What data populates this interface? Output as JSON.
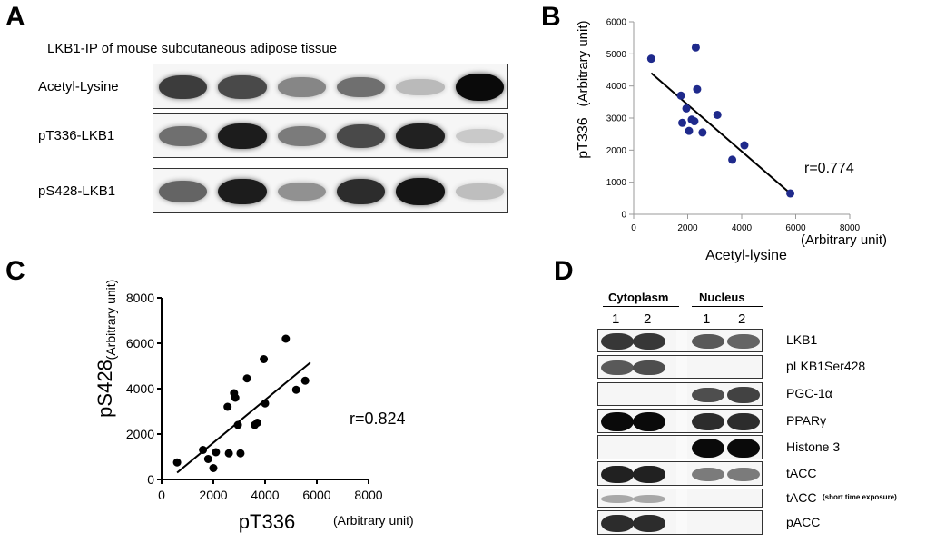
{
  "panel_a": {
    "letter": "A",
    "title": "LKB1-IP of mouse subcutaneous adipose tissue",
    "rows": [
      {
        "label": "Acetyl-Lysine",
        "intensities": [
          0.78,
          0.72,
          0.45,
          0.55,
          0.22,
          1.0
        ]
      },
      {
        "label": "pT336-LKB1",
        "intensities": [
          0.55,
          0.92,
          0.5,
          0.72,
          0.9,
          0.15
        ]
      },
      {
        "label": "pS428-LKB1",
        "intensities": [
          0.6,
          0.92,
          0.4,
          0.85,
          0.95,
          0.2
        ]
      }
    ]
  },
  "panel_b": {
    "letter": "B",
    "r_label": "r=0.774"
  },
  "panel_c": {
    "letter": "C",
    "r_label": "r=0.824"
  },
  "panel_d": {
    "letter": "D",
    "group_labels": [
      "Cytoplasm",
      "Nucleus"
    ],
    "lane_numbers": [
      "1",
      "2",
      "1",
      "2"
    ],
    "rows": [
      {
        "label": "LKB1",
        "sub": "",
        "intensities": [
          0.8,
          0.8,
          0.65,
          0.6
        ]
      },
      {
        "label": "pLKB1Ser428",
        "sub": "",
        "intensities": [
          0.65,
          0.7,
          0,
          0
        ]
      },
      {
        "label": "PGC-1α",
        "sub": "",
        "intensities": [
          0,
          0,
          0.7,
          0.75
        ]
      },
      {
        "label": "PPARγ",
        "sub": "",
        "intensities": [
          1.0,
          1.0,
          0.85,
          0.85
        ]
      },
      {
        "label": "Histone 3",
        "sub": "",
        "intensities": [
          0,
          0,
          1.0,
          1.0
        ]
      },
      {
        "label": "tACC",
        "sub": "",
        "intensities": [
          0.9,
          0.9,
          0.5,
          0.5
        ]
      },
      {
        "label": "tACC",
        "sub": "(short time exposure)",
        "intensities": [
          0.3,
          0.3,
          0,
          0
        ]
      },
      {
        "label": "pACC",
        "sub": "",
        "intensities": [
          0.85,
          0.85,
          0,
          0
        ]
      }
    ]
  },
  "chart_data": [
    {
      "type": "scatter",
      "title": "",
      "xlabel": "Acetyl-lysine",
      "xlabel_unit": "(Arbitrary unit)",
      "ylabel": "pT336",
      "ylabel_unit": "(Arbitrary unit)",
      "xlim": [
        0,
        8000
      ],
      "ylim": [
        0,
        6000
      ],
      "xticks": [
        "0",
        "2000",
        "4000",
        "6000",
        "8000"
      ],
      "yticks": [
        "0",
        "1000",
        "2000",
        "3000",
        "4000",
        "5000",
        "6000"
      ],
      "points": [
        {
          "x": 650,
          "y": 4850
        },
        {
          "x": 1750,
          "y": 3700
        },
        {
          "x": 1800,
          "y": 2850
        },
        {
          "x": 1950,
          "y": 3300
        },
        {
          "x": 2050,
          "y": 2600
        },
        {
          "x": 2150,
          "y": 2950
        },
        {
          "x": 2250,
          "y": 2900
        },
        {
          "x": 2300,
          "y": 5200
        },
        {
          "x": 2350,
          "y": 3900
        },
        {
          "x": 2550,
          "y": 2550
        },
        {
          "x": 3100,
          "y": 3100
        },
        {
          "x": 3650,
          "y": 1700
        },
        {
          "x": 4100,
          "y": 2150
        },
        {
          "x": 5800,
          "y": 650
        }
      ],
      "fit": {
        "x0": 650,
        "y0": 4400,
        "x1": 5800,
        "y1": 650
      },
      "r_label": "r=0.774",
      "marker_color": "#1f2a8c"
    },
    {
      "type": "scatter",
      "title": "",
      "xlabel": "pT336",
      "xlabel_unit": "(Arbitrary unit)",
      "ylabel": "pS428",
      "ylabel_unit": "(Arbitrary unit)",
      "xlim": [
        0,
        8000
      ],
      "ylim": [
        0,
        8000
      ],
      "xticks": [
        "0",
        "2000",
        "4000",
        "6000",
        "8000"
      ],
      "yticks": [
        "0",
        "2000",
        "4000",
        "6000",
        "8000"
      ],
      "points": [
        {
          "x": 600,
          "y": 750
        },
        {
          "x": 1600,
          "y": 1300
        },
        {
          "x": 1800,
          "y": 900
        },
        {
          "x": 2000,
          "y": 500
        },
        {
          "x": 2100,
          "y": 1200
        },
        {
          "x": 2550,
          "y": 3200
        },
        {
          "x": 2600,
          "y": 1150
        },
        {
          "x": 2800,
          "y": 3800
        },
        {
          "x": 2850,
          "y": 3600
        },
        {
          "x": 2950,
          "y": 2400
        },
        {
          "x": 3050,
          "y": 1150
        },
        {
          "x": 3300,
          "y": 4450
        },
        {
          "x": 3600,
          "y": 2400
        },
        {
          "x": 3700,
          "y": 2500
        },
        {
          "x": 3950,
          "y": 5300
        },
        {
          "x": 4000,
          "y": 3350
        },
        {
          "x": 4800,
          "y": 6200
        },
        {
          "x": 5200,
          "y": 3950
        },
        {
          "x": 5550,
          "y": 4350
        }
      ],
      "fit": {
        "x0": 600,
        "y0": 300,
        "x1": 5750,
        "y1": 5150
      },
      "r_label": "r=0.824",
      "marker_color": "#000000"
    }
  ]
}
